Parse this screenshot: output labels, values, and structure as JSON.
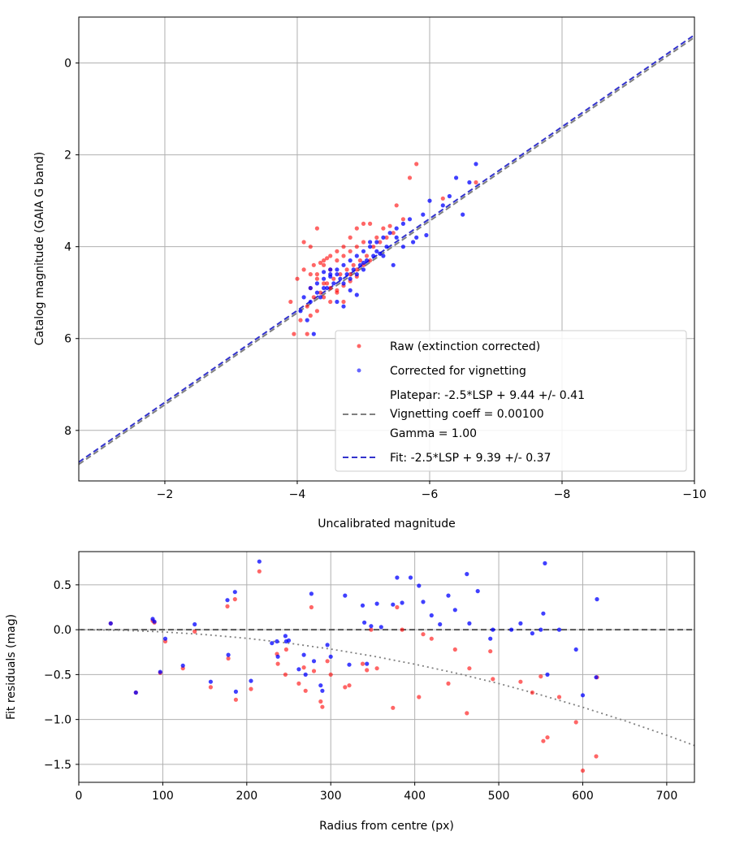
{
  "chart_data": [
    {
      "type": "scatter",
      "title": "",
      "xlabel": "Uncalibrated magnitude",
      "ylabel": "Catalog magnitude (GAIA G band)",
      "xlim": [
        -0.7,
        -10
      ],
      "ylim": [
        9.1,
        -1.0
      ],
      "x_inverted": true,
      "y_inverted": true,
      "grid": true,
      "legend_position": "bottom-right",
      "xticks": [
        -2,
        -4,
        -6,
        -8,
        -10
      ],
      "xtick_labels": [
        "−2",
        "−4",
        "−6",
        "−8",
        "−10"
      ],
      "yticks": [
        0,
        2,
        4,
        6,
        8
      ],
      "ytick_labels": [
        "0",
        "2",
        "4",
        "6",
        "8"
      ],
      "colors": {
        "raw": "#ff0000",
        "corrected": "#0000ff",
        "platepar_line": "#808080",
        "fit_line": "#3333cc"
      },
      "legend": [
        "Raw (extinction corrected)",
        "Corrected for vignetting",
        "Platepar: -2.5*LSP + 9.44 +/- 0.41",
        "Vignetting coeff = 0.00100",
        "Gamma = 1.00",
        "Fit: -2.5*LSP + 9.39 +/- 0.37"
      ],
      "lines": [
        {
          "name": "Platepar: -2.5*LSP + 9.44 +/- 0.41",
          "x": [
            -0.7,
            -10
          ],
          "y": [
            8.74,
            -0.56
          ],
          "style": "dashed",
          "color": "#808080"
        },
        {
          "name": "Fit: -2.5*LSP + 9.39 +/- 0.37",
          "x": [
            -0.7,
            -10
          ],
          "y": [
            8.69,
            -0.61
          ],
          "style": "dashed",
          "color": "#3333cc"
        }
      ],
      "series": [
        {
          "name": "Raw (extinction corrected)",
          "x": [
            -5.8,
            -5.7,
            -6.7,
            -6.2,
            -5.5,
            -5.6,
            -5.4,
            -5.2,
            -5.1,
            -5.3,
            -5.0,
            -4.9,
            -4.8,
            -4.7,
            -4.6,
            -4.5,
            -4.4,
            -4.3,
            -4.2,
            -4.1,
            -4.0,
            -3.9,
            -4.2,
            -4.3,
            -4.4,
            -4.5,
            -4.6,
            -4.7,
            -4.8,
            -4.9,
            -5.0,
            -5.1,
            -4.35,
            -4.45,
            -4.55,
            -4.65,
            -4.75,
            -4.85,
            -4.95,
            -5.05,
            -4.25,
            -4.15,
            -4.05,
            -3.95,
            -4.1,
            -4.2,
            -4.3,
            -4.4,
            -4.5,
            -4.6,
            -4.7,
            -4.8,
            -4.9,
            -5.0,
            -5.15,
            -5.25,
            -5.35,
            -5.45,
            -4.4,
            -4.5,
            -4.6,
            -4.7,
            -4.8,
            -4.9,
            -4.3,
            -4.2,
            -4.15,
            -4.25,
            -4.35,
            -4.45
          ],
          "y": [
            2.2,
            2.5,
            2.6,
            2.95,
            3.1,
            3.4,
            3.55,
            3.8,
            3.5,
            3.6,
            3.5,
            3.6,
            3.8,
            4.0,
            4.1,
            4.2,
            4.3,
            3.6,
            4.0,
            3.9,
            4.7,
            5.2,
            4.9,
            4.6,
            4.4,
            4.5,
            4.3,
            4.2,
            4.1,
            4.0,
            3.9,
            4.3,
            5.0,
            4.8,
            4.7,
            4.6,
            4.5,
            4.4,
            4.3,
            4.2,
            5.1,
            5.3,
            5.6,
            5.9,
            4.5,
            4.6,
            4.7,
            4.8,
            4.9,
            5.0,
            5.2,
            4.6,
            4.5,
            4.4,
            4.0,
            3.9,
            3.8,
            3.7,
            5.1,
            5.2,
            4.95,
            4.85,
            4.75,
            4.65,
            5.4,
            5.5,
            5.9,
            4.4,
            4.35,
            4.25
          ]
        },
        {
          "name": "Corrected for vignetting",
          "x": [
            -6.7,
            -6.4,
            -6.5,
            -6.3,
            -6.0,
            -5.9,
            -5.7,
            -5.6,
            -5.5,
            -5.4,
            -5.3,
            -5.2,
            -5.1,
            -5.0,
            -4.9,
            -4.8,
            -4.7,
            -4.6,
            -4.5,
            -4.4,
            -4.3,
            -4.2,
            -4.1,
            -5.8,
            -5.6,
            -5.5,
            -5.3,
            -5.2,
            -5.0,
            -4.9,
            -4.8,
            -4.7,
            -4.6,
            -4.5,
            -4.4,
            -4.3,
            -4.2,
            -4.35,
            -4.45,
            -4.55,
            -4.65,
            -4.75,
            -4.85,
            -4.95,
            -5.05,
            -5.15,
            -4.25,
            -4.15,
            -4.05,
            -6.6,
            -6.2,
            -5.95,
            -5.75,
            -5.45,
            -5.25,
            -5.35,
            -4.7,
            -4.6,
            -4.8,
            -4.9,
            -5.0,
            -5.1,
            -4.4,
            -4.5
          ],
          "y": [
            2.2,
            2.5,
            3.3,
            2.9,
            3.0,
            3.3,
            3.4,
            3.5,
            3.6,
            3.7,
            3.8,
            3.9,
            4.0,
            4.1,
            4.2,
            4.3,
            4.4,
            4.5,
            4.6,
            4.7,
            4.8,
            4.9,
            5.1,
            3.8,
            4.0,
            3.8,
            4.2,
            4.1,
            4.5,
            4.6,
            4.7,
            4.8,
            4.6,
            4.5,
            4.9,
            5.0,
            5.2,
            5.1,
            4.9,
            4.8,
            4.7,
            4.6,
            4.5,
            4.4,
            4.3,
            4.2,
            5.9,
            5.6,
            5.4,
            2.6,
            3.1,
            3.75,
            3.9,
            4.4,
            4.15,
            4.0,
            5.3,
            5.2,
            4.95,
            5.05,
            4.35,
            3.9,
            4.55,
            4.65
          ]
        }
      ]
    },
    {
      "type": "scatter",
      "title": "",
      "xlabel": "Radius from centre (px)",
      "ylabel": "Fit residuals (mag)",
      "xlim": [
        0,
        733
      ],
      "ylim": [
        -1.7,
        0.87
      ],
      "grid": true,
      "xticks": [
        0,
        100,
        200,
        300,
        400,
        500,
        600,
        700
      ],
      "xtick_labels": [
        "0",
        "100",
        "200",
        "300",
        "400",
        "500",
        "600",
        "700"
      ],
      "yticks": [
        0.5,
        0.0,
        -0.5,
        -1.0,
        -1.5
      ],
      "ytick_labels": [
        "0.5",
        "0.0",
        "−0.5",
        "−1.0",
        "−1.5"
      ],
      "lines": [
        {
          "name": "zero",
          "x": [
            0,
            733
          ],
          "y": [
            0,
            0
          ],
          "style": "dashed",
          "color": "#555555"
        },
        {
          "name": "vignetting",
          "x": [
            0,
            50,
            100,
            150,
            200,
            250,
            300,
            350,
            400,
            450,
            500,
            550,
            600,
            650,
            700,
            733
          ],
          "y": [
            0,
            -0.006,
            -0.024,
            -0.054,
            -0.096,
            -0.15,
            -0.216,
            -0.294,
            -0.384,
            -0.486,
            -0.6,
            -0.726,
            -0.864,
            -1.014,
            -1.176,
            -1.29
          ],
          "style": "dotted",
          "color": "#808080"
        }
      ],
      "series": [
        {
          "name": "Raw",
          "x": [
            38,
            68,
            88,
            90,
            97,
            103,
            124,
            138,
            157,
            177,
            178,
            186,
            187,
            205,
            215,
            236,
            237,
            246,
            247,
            262,
            268,
            270,
            277,
            280,
            288,
            290,
            296,
            300,
            317,
            322,
            338,
            343,
            348,
            355,
            374,
            379,
            385,
            405,
            410,
            420,
            440,
            448,
            462,
            465,
            490,
            493,
            526,
            540,
            550,
            553,
            558,
            572,
            592,
            600,
            616,
            617
          ],
          "y": [
            0.07,
            -0.7,
            0.1,
            0.08,
            -0.48,
            -0.13,
            -0.43,
            -0.02,
            -0.64,
            0.26,
            -0.32,
            0.34,
            -0.78,
            -0.66,
            0.65,
            -0.27,
            -0.38,
            -0.5,
            -0.22,
            -0.6,
            -0.42,
            -0.68,
            0.25,
            -0.46,
            -0.8,
            -0.86,
            -0.35,
            -0.5,
            -0.64,
            -0.62,
            -0.38,
            -0.45,
            0.0,
            -0.43,
            -0.87,
            0.25,
            0.0,
            -0.75,
            -0.05,
            -0.1,
            -0.6,
            -0.22,
            -0.93,
            -0.43,
            -0.24,
            -0.55,
            -0.58,
            -0.7,
            -0.52,
            -1.24,
            -1.2,
            -0.75,
            -1.03,
            -1.57,
            -1.41,
            -0.53
          ]
        },
        {
          "name": "Corrected",
          "x": [
            38,
            68,
            88,
            90,
            97,
            103,
            124,
            138,
            157,
            177,
            178,
            186,
            187,
            205,
            215,
            236,
            237,
            246,
            247,
            262,
            268,
            270,
            277,
            280,
            288,
            290,
            296,
            300,
            317,
            322,
            338,
            343,
            348,
            355,
            374,
            379,
            385,
            405,
            410,
            420,
            440,
            448,
            462,
            465,
            490,
            493,
            526,
            540,
            550,
            553,
            558,
            572,
            592,
            600,
            616,
            617,
            230,
            250,
            340,
            360,
            395,
            430,
            475,
            515,
            555
          ],
          "y": [
            0.07,
            -0.7,
            0.12,
            0.09,
            -0.47,
            -0.1,
            -0.4,
            0.06,
            -0.58,
            0.33,
            -0.28,
            0.42,
            -0.69,
            -0.57,
            0.76,
            -0.13,
            -0.3,
            -0.07,
            -0.13,
            -0.44,
            -0.28,
            -0.5,
            0.4,
            -0.35,
            -0.62,
            -0.68,
            -0.17,
            -0.3,
            0.38,
            -0.39,
            0.27,
            -0.38,
            0.04,
            0.29,
            0.28,
            0.58,
            0.3,
            0.49,
            0.31,
            0.16,
            0.38,
            0.22,
            0.62,
            0.07,
            -0.1,
            0.0,
            0.07,
            -0.04,
            0.0,
            0.18,
            -0.5,
            0.0,
            -0.22,
            -0.73,
            -0.53,
            0.34,
            -0.15,
            -0.12,
            0.08,
            0.03,
            0.58,
            0.06,
            0.43,
            0.0,
            0.74
          ]
        }
      ]
    }
  ]
}
